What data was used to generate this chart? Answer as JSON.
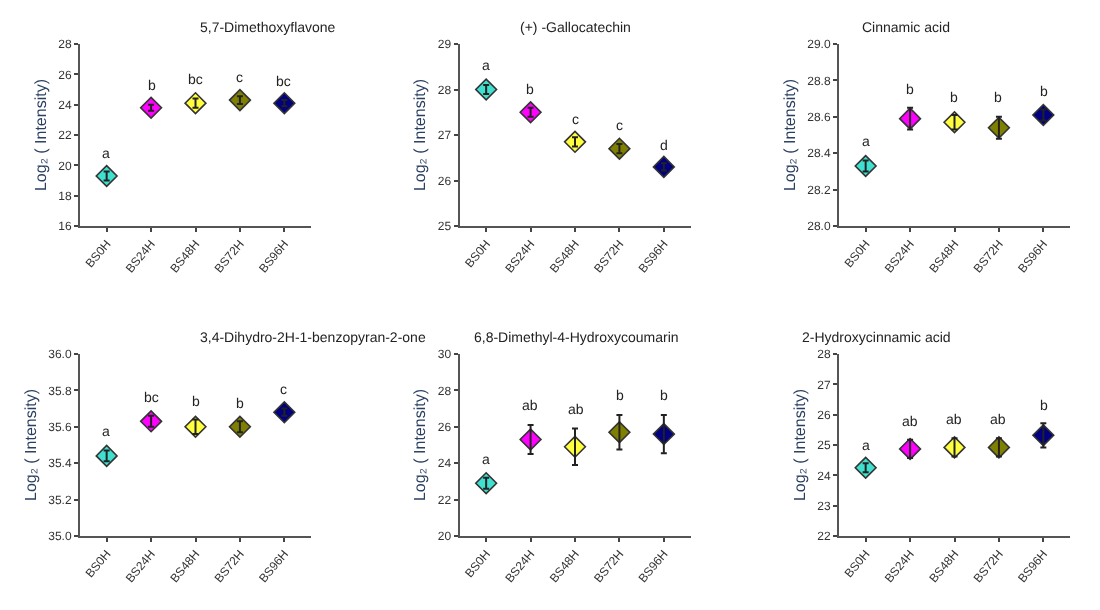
{
  "chart_data": [
    {
      "type": "scatter",
      "title": "5,7-Dimethoxyflavone",
      "ylabel": "Log₂ ( Intensity)",
      "categories": [
        "BS0H",
        "BS24H",
        "BS48H",
        "BS72H",
        "BS96H"
      ],
      "values": [
        19.3,
        23.8,
        24.1,
        24.3,
        24.1
      ],
      "errors": [
        0.3,
        0.2,
        0.3,
        0.25,
        0.2
      ],
      "colors": [
        "#40e0d0",
        "#ff00ff",
        "#ffff40",
        "#808000",
        "#000080"
      ],
      "value_labels": [
        "a",
        "b",
        "bc",
        "c",
        "bc"
      ],
      "ylim": [
        16,
        28
      ],
      "yticks": [
        16,
        18,
        20,
        22,
        24,
        26,
        28
      ],
      "marker": "diamond",
      "grid": false
    },
    {
      "type": "scatter",
      "title": "(+) -Gallocatechin",
      "ylabel": "Log₂ ( Intensity)",
      "categories": [
        "BS0H",
        "BS24H",
        "BS48H",
        "BS72H",
        "BS96H"
      ],
      "values": [
        28.0,
        27.5,
        26.85,
        26.7,
        26.3
      ],
      "errors": [
        0.1,
        0.1,
        0.1,
        0.1,
        0.08
      ],
      "colors": [
        "#40e0d0",
        "#ff00ff",
        "#ffff40",
        "#808000",
        "#000080"
      ],
      "value_labels": [
        "a",
        "b",
        "c",
        "c",
        "d"
      ],
      "ylim": [
        25,
        29
      ],
      "yticks": [
        25,
        26,
        27,
        28,
        29
      ],
      "marker": "diamond",
      "grid": false
    },
    {
      "type": "scatter",
      "title": "Cinnamic acid",
      "ylabel": "Log₂ ( Intensity)",
      "categories": [
        "BS0H",
        "BS24H",
        "BS48H",
        "BS72H",
        "BS96H"
      ],
      "values": [
        28.33,
        28.59,
        28.57,
        28.54,
        28.61
      ],
      "errors": [
        0.03,
        0.06,
        0.04,
        0.06,
        0.03
      ],
      "colors": [
        "#40e0d0",
        "#ff00ff",
        "#ffff40",
        "#808000",
        "#000080"
      ],
      "value_labels": [
        "a",
        "b",
        "b",
        "b",
        "b"
      ],
      "ylim": [
        28,
        29
      ],
      "yticks": [
        {
          "value": 28,
          "label": "28.0"
        },
        28.2,
        28.4,
        28.6,
        28.8,
        {
          "value": 29,
          "label": "29.0"
        }
      ],
      "marker": "diamond",
      "grid": false
    },
    {
      "type": "scatter",
      "title": "3,4-Dihydro-2H-1-benzopyran-2-one",
      "ylabel": "Log₂ ( Intensity)",
      "categories": [
        "BS0H",
        "BS24H",
        "BS48H",
        "BS72H",
        "BS96H"
      ],
      "values": [
        35.44,
        35.63,
        35.6,
        35.6,
        35.68
      ],
      "errors": [
        0.03,
        0.03,
        0.04,
        0.03,
        0.02
      ],
      "colors": [
        "#40e0d0",
        "#ff00ff",
        "#ffff40",
        "#808000",
        "#000080"
      ],
      "value_labels": [
        "a",
        "bc",
        "b",
        "b",
        "c"
      ],
      "ylim": [
        35,
        36
      ],
      "yticks": [
        {
          "value": 35,
          "label": "35.0"
        },
        35.2,
        35.4,
        35.6,
        35.8,
        {
          "value": 36,
          "label": "36.0"
        }
      ],
      "marker": "diamond",
      "grid": false
    },
    {
      "type": "scatter",
      "title": "6,8-Dimethyl-4-Hydroxycoumarin",
      "ylabel": "Log₂ ( Intensity)",
      "categories": [
        "BS0H",
        "BS24H",
        "BS48H",
        "BS72H",
        "BS96H"
      ],
      "values": [
        22.9,
        25.3,
        24.9,
        25.7,
        25.6
      ],
      "errors": [
        0.3,
        0.8,
        1.0,
        0.95,
        1.05
      ],
      "colors": [
        "#40e0d0",
        "#ff00ff",
        "#ffff40",
        "#808000",
        "#000080"
      ],
      "value_labels": [
        "a",
        "ab",
        "ab",
        "b",
        "b"
      ],
      "ylim": [
        20,
        30
      ],
      "yticks": [
        20,
        22,
        24,
        26,
        28,
        30
      ],
      "marker": "diamond",
      "grid": false
    },
    {
      "type": "scatter",
      "title": "2-Hydroxycinnamic acid",
      "ylabel": "Log₂ ( Intensity)",
      "categories": [
        "BS0H",
        "BS24H",
        "BS48H",
        "BS72H",
        "BS96H"
      ],
      "values": [
        24.25,
        24.87,
        24.92,
        24.92,
        25.32
      ],
      "errors": [
        0.15,
        0.3,
        0.3,
        0.3,
        0.4
      ],
      "colors": [
        "#40e0d0",
        "#ff00ff",
        "#ffff40",
        "#808000",
        "#000080"
      ],
      "value_labels": [
        "a",
        "ab",
        "ab",
        "ab",
        "b"
      ],
      "ylim": [
        22,
        28
      ],
      "yticks": [
        22,
        23,
        24,
        25,
        26,
        27,
        28
      ],
      "marker": "diamond",
      "grid": false
    }
  ]
}
